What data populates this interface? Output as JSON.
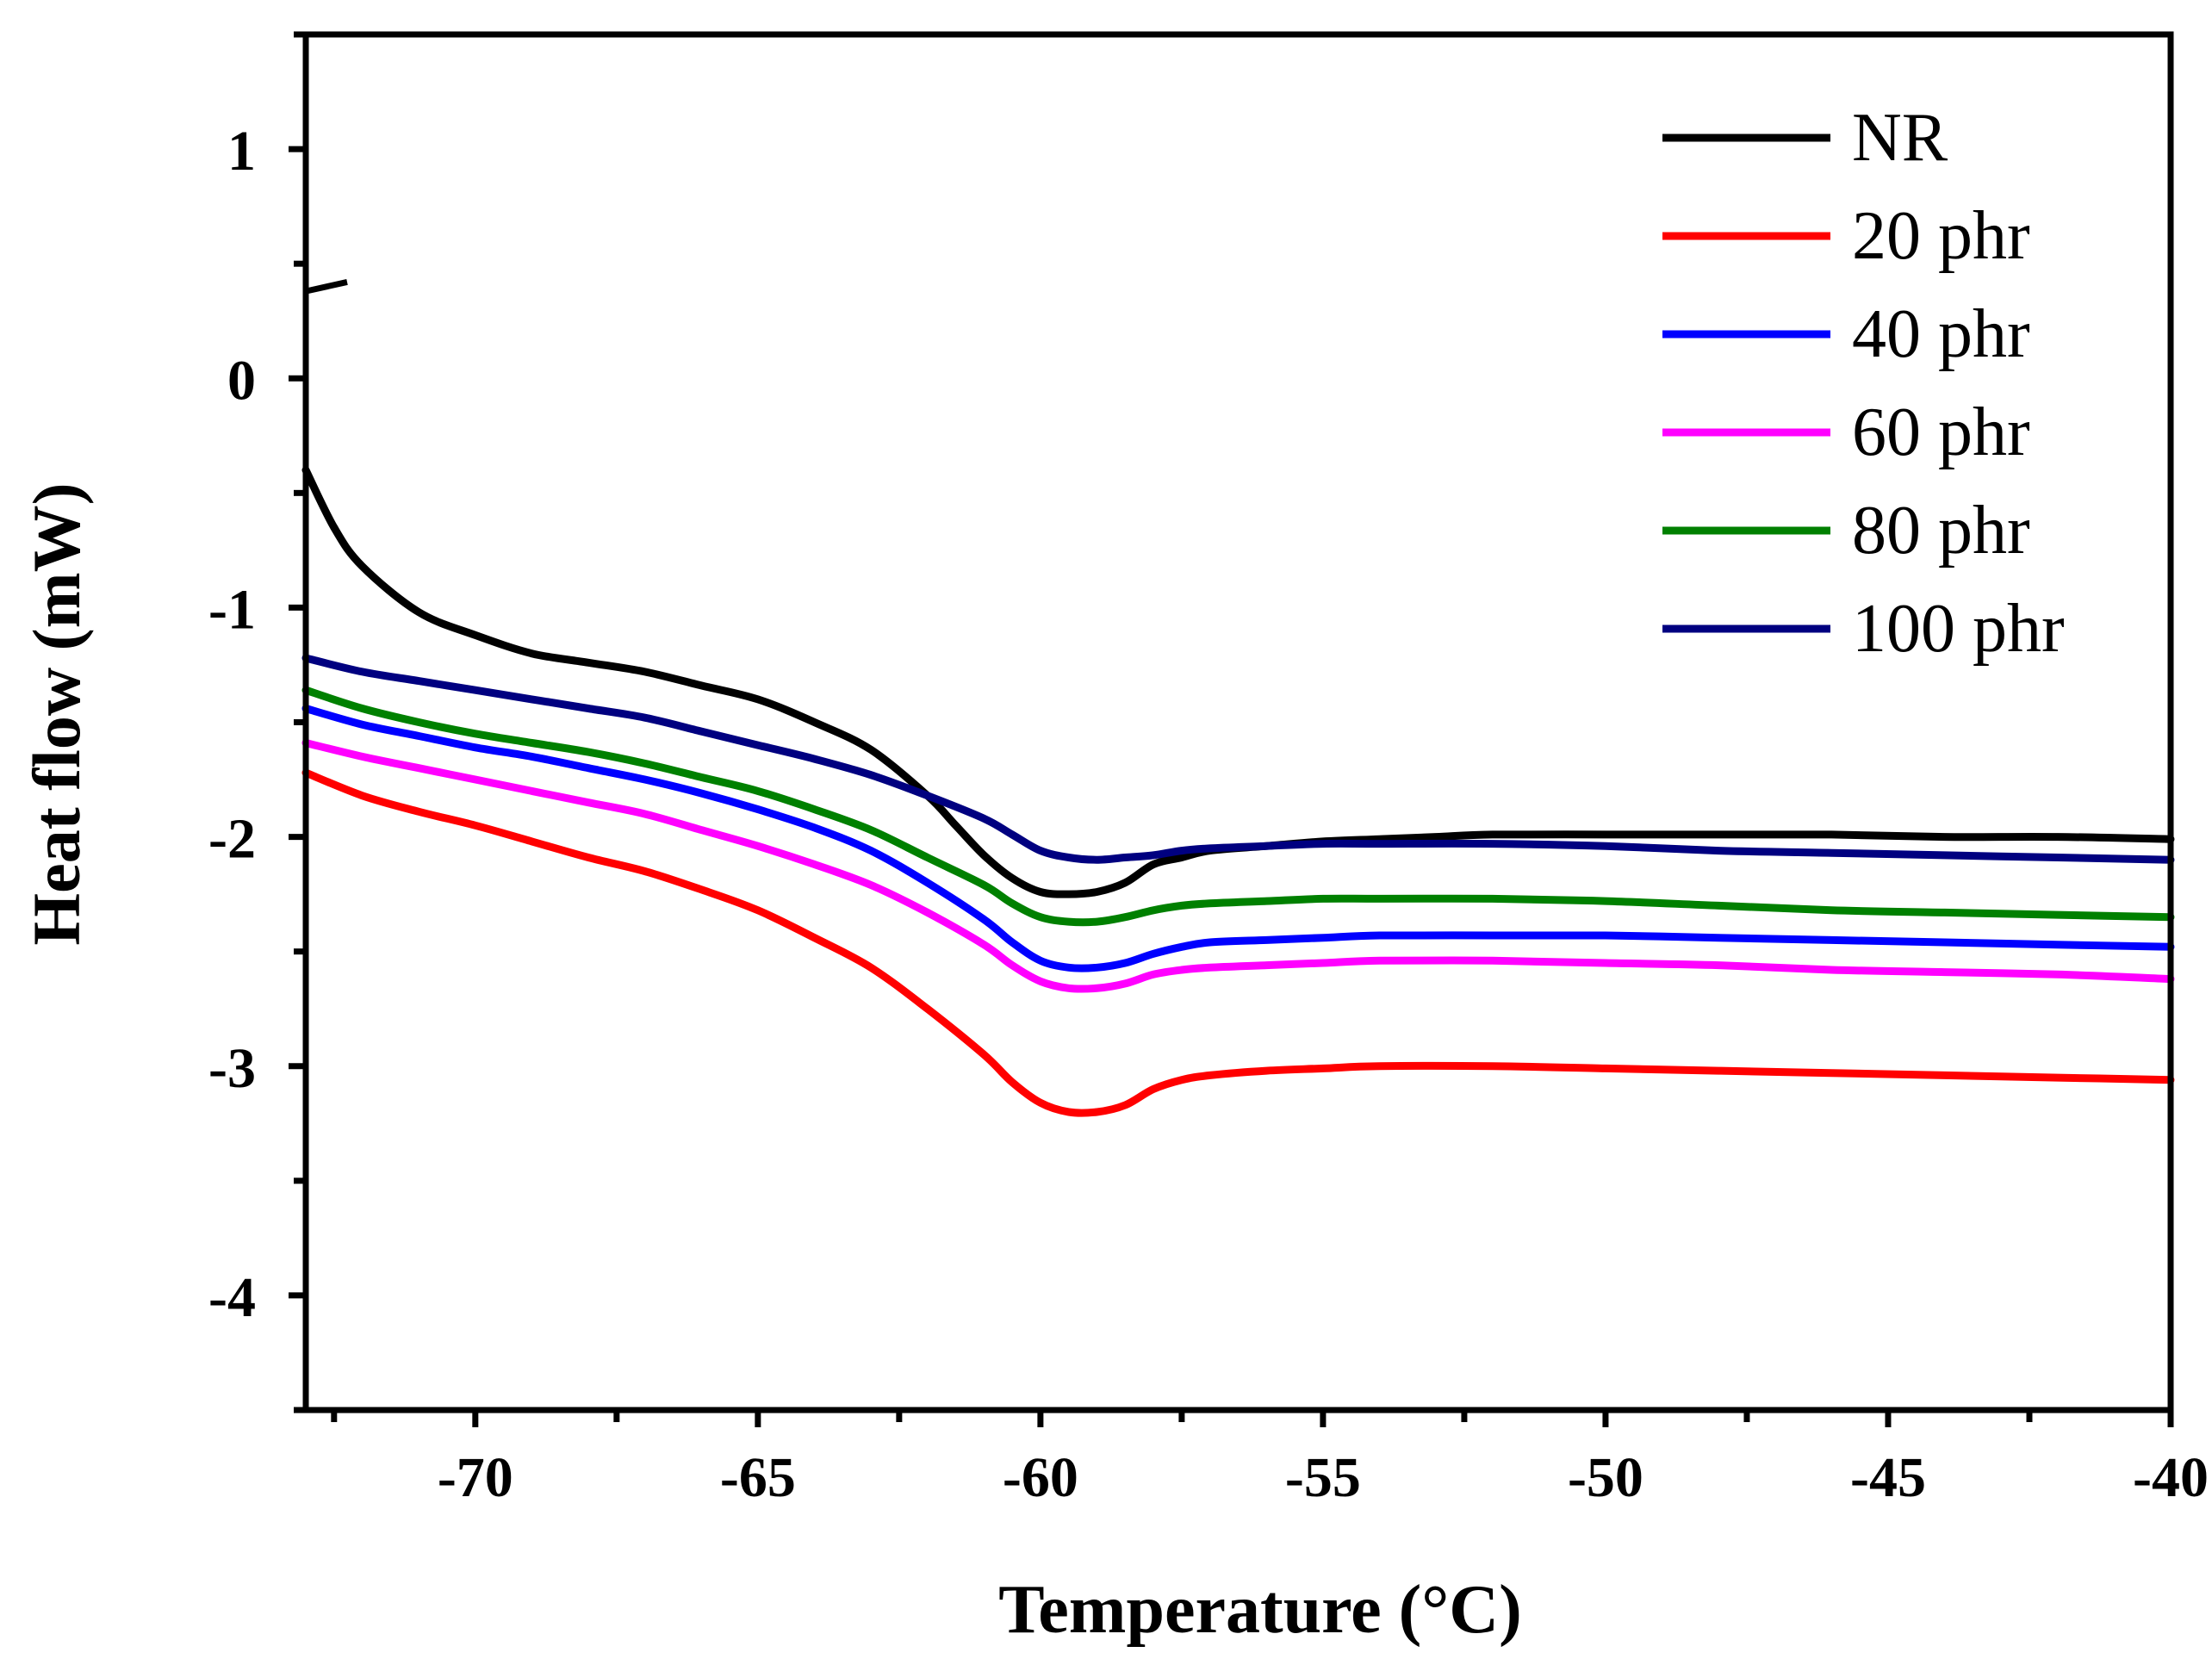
{
  "chart_data": {
    "type": "line",
    "title": "",
    "xlabel": "Temperature (°C)",
    "ylabel": "Heat flow (mW)",
    "xlim": [
      -73,
      -40
    ],
    "ylim": [
      -4.5,
      1.5
    ],
    "x_ticks": [
      -70,
      -65,
      -60,
      -55,
      -50,
      -45,
      -40
    ],
    "x_tick_labels": [
      "-70",
      "-65",
      "-60",
      "-55",
      "-50",
      "-45",
      "-40"
    ],
    "x_minor_ticks": [
      -72.5,
      -67.5,
      -62.5,
      -57.5,
      -52.5,
      -47.5,
      -42.5
    ],
    "y_ticks": [
      1,
      0,
      -1,
      -2,
      -3,
      -4
    ],
    "y_tick_labels": [
      "1",
      "0",
      "-1",
      "-2",
      "-3",
      "-4"
    ],
    "y_minor_ticks": [
      1.5,
      0.5,
      -0.5,
      -1.5,
      -2.5,
      -3.5,
      -4.5
    ],
    "axis_break": "y-axis break between 0 and 1",
    "legend": {
      "position": "top-right"
    },
    "series": [
      {
        "name": "NR",
        "color": "#000000",
        "points": [
          [
            -73,
            -0.4
          ],
          [
            -72.5,
            -0.65
          ],
          [
            -72,
            -0.82
          ],
          [
            -71,
            -1.02
          ],
          [
            -70,
            -1.12
          ],
          [
            -69,
            -1.2
          ],
          [
            -68,
            -1.24
          ],
          [
            -67,
            -1.28
          ],
          [
            -66,
            -1.34
          ],
          [
            -65,
            -1.4
          ],
          [
            -64,
            -1.5
          ],
          [
            -63,
            -1.62
          ],
          [
            -62,
            -1.82
          ],
          [
            -61.5,
            -1.95
          ],
          [
            -61,
            -2.08
          ],
          [
            -60.5,
            -2.18
          ],
          [
            -60,
            -2.24
          ],
          [
            -59.5,
            -2.25
          ],
          [
            -59,
            -2.24
          ],
          [
            -58.5,
            -2.2
          ],
          [
            -58,
            -2.12
          ],
          [
            -57.5,
            -2.09
          ],
          [
            -57,
            -2.06
          ],
          [
            -56,
            -2.04
          ],
          [
            -55,
            -2.02
          ],
          [
            -54,
            -2.01
          ],
          [
            -53,
            -2.0
          ],
          [
            -52,
            -1.99
          ],
          [
            -50,
            -1.99
          ],
          [
            -48,
            -1.99
          ],
          [
            -46,
            -1.99
          ],
          [
            -44,
            -2.0
          ],
          [
            -42,
            -2.0
          ],
          [
            -40,
            -2.01
          ]
        ]
      },
      {
        "name": "20 phr",
        "color": "#ff0000",
        "points": [
          [
            -73,
            -1.72
          ],
          [
            -72,
            -1.82
          ],
          [
            -71,
            -1.89
          ],
          [
            -70,
            -1.95
          ],
          [
            -69,
            -2.02
          ],
          [
            -68,
            -2.09
          ],
          [
            -67,
            -2.15
          ],
          [
            -66,
            -2.23
          ],
          [
            -65,
            -2.32
          ],
          [
            -64,
            -2.44
          ],
          [
            -63,
            -2.57
          ],
          [
            -62,
            -2.75
          ],
          [
            -61,
            -2.95
          ],
          [
            -60.5,
            -3.07
          ],
          [
            -60,
            -3.16
          ],
          [
            -59.5,
            -3.2
          ],
          [
            -59,
            -3.2
          ],
          [
            -58.5,
            -3.17
          ],
          [
            -58,
            -3.1
          ],
          [
            -57.5,
            -3.06
          ],
          [
            -57,
            -3.04
          ],
          [
            -56,
            -3.02
          ],
          [
            -55,
            -3.01
          ],
          [
            -54,
            -3.0
          ],
          [
            -52,
            -3.0
          ],
          [
            -50,
            -3.01
          ],
          [
            -48,
            -3.02
          ],
          [
            -46,
            -3.03
          ],
          [
            -44,
            -3.04
          ],
          [
            -42,
            -3.05
          ],
          [
            -40,
            -3.06
          ]
        ]
      },
      {
        "name": "40 phr",
        "color": "#0000ff",
        "points": [
          [
            -73,
            -1.44
          ],
          [
            -72,
            -1.51
          ],
          [
            -71,
            -1.56
          ],
          [
            -70,
            -1.61
          ],
          [
            -69,
            -1.65
          ],
          [
            -68,
            -1.7
          ],
          [
            -67,
            -1.75
          ],
          [
            -66,
            -1.81
          ],
          [
            -65,
            -1.88
          ],
          [
            -64,
            -1.96
          ],
          [
            -63,
            -2.06
          ],
          [
            -62,
            -2.2
          ],
          [
            -61,
            -2.36
          ],
          [
            -60.5,
            -2.46
          ],
          [
            -60,
            -2.54
          ],
          [
            -59.5,
            -2.57
          ],
          [
            -59,
            -2.57
          ],
          [
            -58.5,
            -2.55
          ],
          [
            -58,
            -2.51
          ],
          [
            -57.5,
            -2.48
          ],
          [
            -57,
            -2.46
          ],
          [
            -56,
            -2.45
          ],
          [
            -55,
            -2.44
          ],
          [
            -54,
            -2.43
          ],
          [
            -52,
            -2.43
          ],
          [
            -50,
            -2.43
          ],
          [
            -48,
            -2.44
          ],
          [
            -46,
            -2.45
          ],
          [
            -44,
            -2.46
          ],
          [
            -42,
            -2.47
          ],
          [
            -40,
            -2.48
          ]
        ]
      },
      {
        "name": "60 phr",
        "color": "#ff00ff",
        "points": [
          [
            -73,
            -1.59
          ],
          [
            -72,
            -1.65
          ],
          [
            -71,
            -1.7
          ],
          [
            -70,
            -1.75
          ],
          [
            -69,
            -1.8
          ],
          [
            -68,
            -1.85
          ],
          [
            -67,
            -1.9
          ],
          [
            -66,
            -1.97
          ],
          [
            -65,
            -2.04
          ],
          [
            -64,
            -2.12
          ],
          [
            -63,
            -2.21
          ],
          [
            -62,
            -2.33
          ],
          [
            -61,
            -2.47
          ],
          [
            -60.5,
            -2.56
          ],
          [
            -60,
            -2.63
          ],
          [
            -59.5,
            -2.66
          ],
          [
            -59,
            -2.66
          ],
          [
            -58.5,
            -2.64
          ],
          [
            -58,
            -2.6
          ],
          [
            -57.5,
            -2.58
          ],
          [
            -57,
            -2.57
          ],
          [
            -56,
            -2.56
          ],
          [
            -55,
            -2.55
          ],
          [
            -54,
            -2.54
          ],
          [
            -52,
            -2.54
          ],
          [
            -50,
            -2.55
          ],
          [
            -48,
            -2.56
          ],
          [
            -46,
            -2.58
          ],
          [
            -44,
            -2.59
          ],
          [
            -42,
            -2.6
          ],
          [
            -40,
            -2.62
          ]
        ]
      },
      {
        "name": "80 phr",
        "color": "#008000",
        "points": [
          [
            -73,
            -1.36
          ],
          [
            -72,
            -1.44
          ],
          [
            -71,
            -1.5
          ],
          [
            -70,
            -1.55
          ],
          [
            -69,
            -1.59
          ],
          [
            -68,
            -1.63
          ],
          [
            -67,
            -1.68
          ],
          [
            -66,
            -1.74
          ],
          [
            -65,
            -1.8
          ],
          [
            -64,
            -1.88
          ],
          [
            -63,
            -1.97
          ],
          [
            -62,
            -2.09
          ],
          [
            -61,
            -2.21
          ],
          [
            -60.5,
            -2.29
          ],
          [
            -60,
            -2.35
          ],
          [
            -59.5,
            -2.37
          ],
          [
            -59,
            -2.37
          ],
          [
            -58.5,
            -2.35
          ],
          [
            -58,
            -2.32
          ],
          [
            -57.5,
            -2.3
          ],
          [
            -57,
            -2.29
          ],
          [
            -56,
            -2.28
          ],
          [
            -55,
            -2.27
          ],
          [
            -54,
            -2.27
          ],
          [
            -52,
            -2.27
          ],
          [
            -50,
            -2.28
          ],
          [
            -48,
            -2.3
          ],
          [
            -46,
            -2.32
          ],
          [
            -44,
            -2.33
          ],
          [
            -42,
            -2.34
          ],
          [
            -40,
            -2.35
          ]
        ]
      },
      {
        "name": "100 phr",
        "color": "#000080",
        "points": [
          [
            -73,
            -1.22
          ],
          [
            -72,
            -1.28
          ],
          [
            -71,
            -1.32
          ],
          [
            -70,
            -1.36
          ],
          [
            -69,
            -1.4
          ],
          [
            -68,
            -1.44
          ],
          [
            -67,
            -1.48
          ],
          [
            -66,
            -1.54
          ],
          [
            -65,
            -1.6
          ],
          [
            -64,
            -1.66
          ],
          [
            -63,
            -1.73
          ],
          [
            -62,
            -1.82
          ],
          [
            -61,
            -1.92
          ],
          [
            -60.5,
            -1.99
          ],
          [
            -60,
            -2.06
          ],
          [
            -59.5,
            -2.09
          ],
          [
            -59,
            -2.1
          ],
          [
            -58.5,
            -2.09
          ],
          [
            -58,
            -2.08
          ],
          [
            -57.5,
            -2.06
          ],
          [
            -57,
            -2.05
          ],
          [
            -56,
            -2.04
          ],
          [
            -55,
            -2.03
          ],
          [
            -54,
            -2.03
          ],
          [
            -52,
            -2.03
          ],
          [
            -50,
            -2.04
          ],
          [
            -48,
            -2.06
          ],
          [
            -46,
            -2.07
          ],
          [
            -44,
            -2.08
          ],
          [
            -42,
            -2.09
          ],
          [
            -40,
            -2.1
          ]
        ]
      }
    ]
  }
}
